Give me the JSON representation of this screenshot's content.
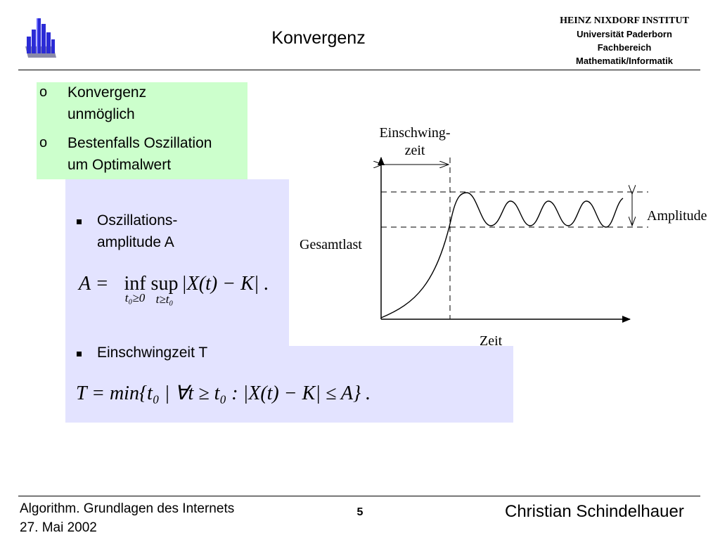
{
  "header": {
    "title": "Konvergenz",
    "institute": {
      "name": "HEINZ NIXDORF INSTITUT",
      "line1": "Universität Paderborn",
      "line2": "Fachbereich",
      "line3": "Mathematik/Informatik"
    }
  },
  "green_box": {
    "bullets": [
      {
        "marker": "o",
        "lines": [
          "Konvergenz",
          "unmöglich"
        ]
      },
      {
        "marker": "o",
        "lines": [
          "Bestenfalls Oszillation",
          "um Optimalwert"
        ]
      }
    ]
  },
  "amplitude_section": {
    "bullet_lines": [
      "Oszillations-",
      "amplitude A"
    ],
    "formula": {
      "lhs": "A =",
      "inf": "inf",
      "inf_sub": "t₀≥0",
      "sup": "sup",
      "sup_sub": "t≥t₀",
      "body": "|X(t) − K| ."
    }
  },
  "settling_section": {
    "bullet": "Einschwingzeit T",
    "formula": {
      "lhs": "T = min",
      "body": "{t₀ | ∀t ≥ t₀  :  |X(t) − K| ≤ A} ."
    }
  },
  "figure": {
    "label_settling_line1": "Einschwing-",
    "label_settling_line2": "zeit",
    "label_amplitude": "Amplitude",
    "label_load": "Gesamtlast",
    "label_time": "Zeit"
  },
  "footer": {
    "course": "Algorithm. Grundlagen des Internets",
    "date": "27. Mai 2002",
    "page": "5",
    "author": "Christian Schindelhauer"
  }
}
